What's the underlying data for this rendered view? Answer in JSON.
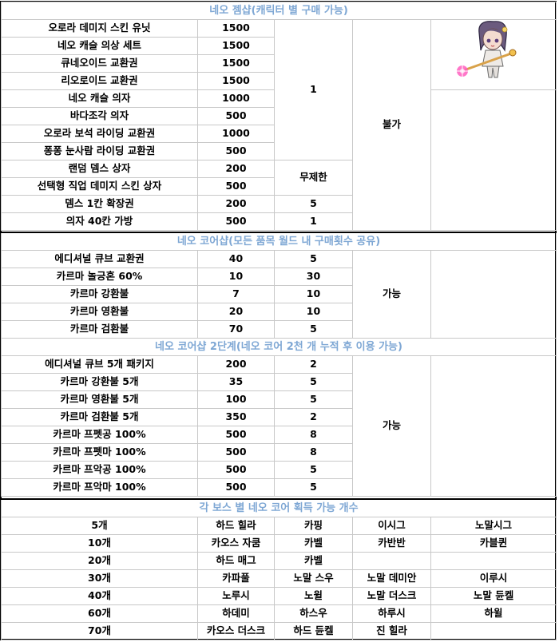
{
  "sections": {
    "gem_shop": {
      "title": "네오 젬샵(캐릭터 별 구매 가능)",
      "items": [
        {
          "name": "오로라 데미지 스킨 유닛",
          "price": "1500"
        },
        {
          "name": "네오 캐슬 의상 세트",
          "price": "1500"
        },
        {
          "name": "큐네오이드 교환권",
          "price": "1500"
        },
        {
          "name": "리오로이드 교환권",
          "price": "1500"
        },
        {
          "name": "네오 캐슬 의자",
          "price": "1000"
        },
        {
          "name": "바다조각 의자",
          "price": "500"
        },
        {
          "name": "오로라 보석 라이딩 교환권",
          "price": "1000"
        },
        {
          "name": "퐁퐁 눈사람 라이딩 교환권",
          "price": "500"
        },
        {
          "name": "랜덤 뎀스 상자",
          "price": "200"
        },
        {
          "name": "선택형 직업 데미지 스킨 상자",
          "price": "500"
        },
        {
          "name": "뎀스 1칸 확장권",
          "price": "200"
        },
        {
          "name": "의자 40칸 가방",
          "price": "500"
        }
      ],
      "limit_merged_1": "1",
      "limit_merged_2": "무제한",
      "limit_row11": "5",
      "limit_row12": "1",
      "trade": "불가"
    },
    "core_shop": {
      "title": "네오 코어샵(모든 품목 월드 내 구매횟수 공유)",
      "items": [
        {
          "name": "에디셔널 큐브 교환권",
          "price": "40",
          "limit": "5"
        },
        {
          "name": "카르마 놀긍혼 60%",
          "price": "10",
          "limit": "30"
        },
        {
          "name": "카르마 강환불",
          "price": "7",
          "limit": "10"
        },
        {
          "name": "카르마 영환불",
          "price": "20",
          "limit": "10"
        },
        {
          "name": "카르마 검환불",
          "price": "70",
          "limit": "5"
        }
      ],
      "trade": "가능"
    },
    "core_shop2": {
      "title": "네오 코어샵 2단계(네오 코어 2천 개 누적 후 이용 가능)",
      "items": [
        {
          "name": "에디셔널 큐브 5개 패키지",
          "price": "200",
          "limit": "2"
        },
        {
          "name": "카르마 강환불 5개",
          "price": "35",
          "limit": "5"
        },
        {
          "name": "카르마 영환불 5개",
          "price": "100",
          "limit": "5"
        },
        {
          "name": "카르마 검환불 5개",
          "price": "350",
          "limit": "2"
        },
        {
          "name": "카르마 프펫공 100%",
          "price": "500",
          "limit": "8"
        },
        {
          "name": "카르마 프펫마 100%",
          "price": "500",
          "limit": "8"
        },
        {
          "name": "카르마 프악공 100%",
          "price": "500",
          "limit": "5"
        },
        {
          "name": "카르마 프악마 100%",
          "price": "500",
          "limit": "5"
        }
      ],
      "trade": "가능"
    },
    "boss_cores": {
      "title": "각 보스 별 네오 코어 획득 가능 개수",
      "rows": [
        {
          "count": "5개",
          "bosses": [
            "하드 힐라",
            "카핑",
            "이시그",
            "노말시그"
          ]
        },
        {
          "count": "10개",
          "bosses": [
            "카오스 자쿰",
            "카벨",
            "카반반",
            "카블퀸"
          ]
        },
        {
          "count": "20개",
          "bosses": [
            "하드 매그",
            "카벨",
            "",
            ""
          ]
        },
        {
          "count": "30개",
          "bosses": [
            "카파풀",
            "노말 스우",
            "노말 데미안",
            "이루시"
          ]
        },
        {
          "count": "40개",
          "bosses": [
            "노루시",
            "노윌",
            "노말 더스크",
            "노말 듄켈"
          ]
        },
        {
          "count": "60개",
          "bosses": [
            "하데미",
            "하스우",
            "하루시",
            "하윌"
          ]
        },
        {
          "count": "70개",
          "bosses": [
            "카오스 더스크",
            "하드 듄켈",
            "진 힐라",
            ""
          ]
        }
      ]
    }
  },
  "colors": {
    "header_text": "#7ea7d4",
    "border": "#c8c8c8",
    "frame": "#000000"
  }
}
